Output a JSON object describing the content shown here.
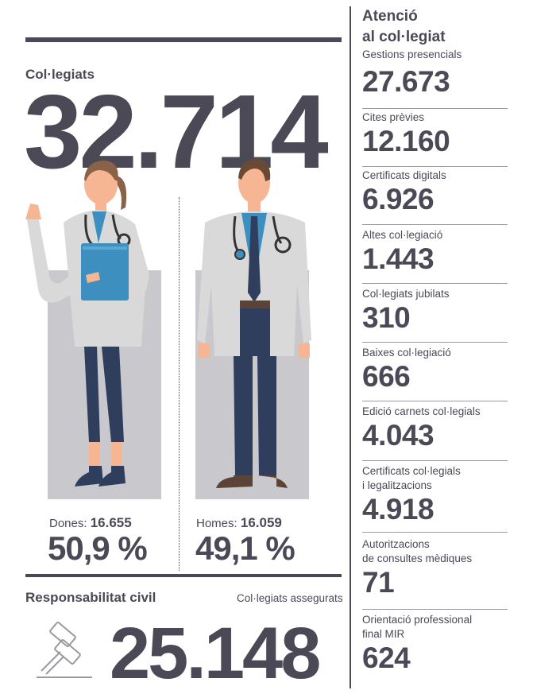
{
  "left": {
    "members_label": "Col·legiats",
    "members_total": "32.714",
    "women": {
      "label": "Dones:",
      "count": "16.655",
      "percent": "50,9 %"
    },
    "men": {
      "label": "Homes:",
      "count": "16.059",
      "percent": "49,1 %"
    },
    "liability": {
      "title": "Responsabilitat civil",
      "sub_label": "Col·legiats assegurats",
      "value": "25.148"
    }
  },
  "right": {
    "title_line1": "Atenció",
    "title_line2": "al col·legiat",
    "stats": [
      {
        "label": "Gestions presencials",
        "value": "27.673"
      },
      {
        "label": "Cites prèvies",
        "value": "12.160"
      },
      {
        "label": "Certificats digitals",
        "value": "6.926"
      },
      {
        "label": "Altes col·legiació",
        "value": "1.443"
      },
      {
        "label": "Col·legiats jubilats",
        "value": "310"
      },
      {
        "label": "Baixes col·legiació",
        "value": "666"
      },
      {
        "label": "Edició carnets col·legials",
        "value": "4.043"
      },
      {
        "label_line1": "Certificats col·legials",
        "label_line2": "i legalitzacions",
        "value": "4.918"
      },
      {
        "label_line1": "Autoritzacions",
        "label_line2": "de consultes mèdiques",
        "value": "71"
      },
      {
        "label_line1": "Orientació professional",
        "label_line2": "final MIR",
        "value": "624"
      }
    ]
  },
  "colors": {
    "ink": "#4a4955",
    "grey_panel": "#c9c8cd",
    "coat": "#d9d9d9",
    "shirt": "#3d8fc0",
    "trousers": "#2f3e5c",
    "skin": "#f6b693"
  },
  "icons": {
    "female_doctor": "female-doctor-illustration",
    "male_doctor": "male-doctor-illustration",
    "gavel": "gavel-icon"
  }
}
